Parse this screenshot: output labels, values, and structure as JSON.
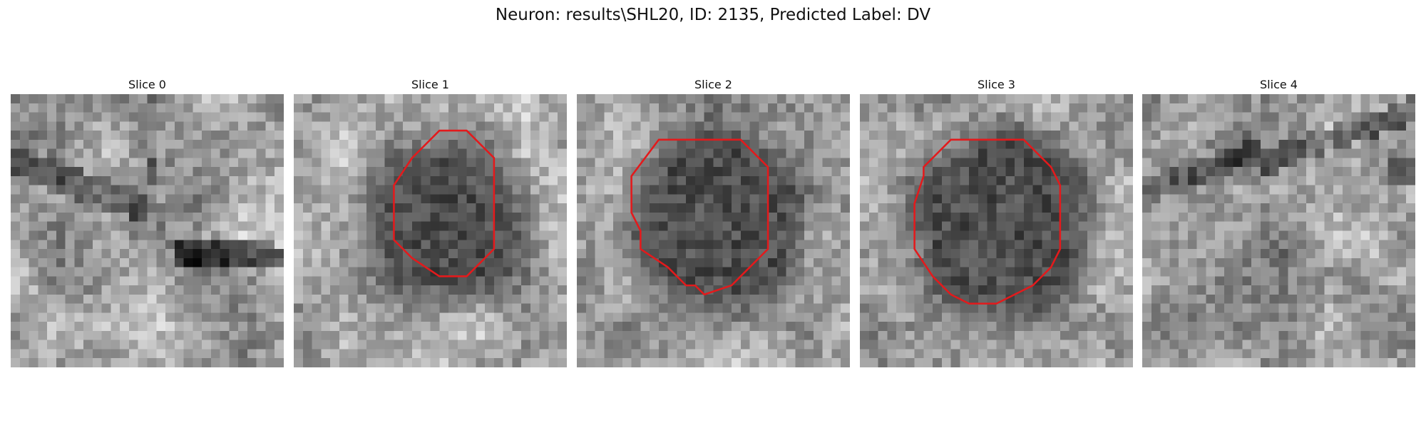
{
  "suptitle": "Neuron: results\\SHL20, ID: 2135, Predicted Label: DV",
  "panels": [
    {
      "title": "Slice 0",
      "has_contour": false,
      "texture": "streaks",
      "seed": 11,
      "contour": []
    },
    {
      "title": "Slice 1",
      "has_contour": true,
      "texture": "blob",
      "seed": 23,
      "contour": [
        [
          16,
          4
        ],
        [
          19,
          4
        ],
        [
          22,
          7
        ],
        [
          22,
          17
        ],
        [
          19,
          20
        ],
        [
          16,
          20
        ],
        [
          13,
          18
        ],
        [
          12,
          17
        ],
        [
          11,
          16
        ],
        [
          11,
          10
        ],
        [
          13,
          7
        ]
      ]
    },
    {
      "title": "Slice 2",
      "has_contour": true,
      "texture": "blob",
      "seed": 37,
      "contour": [
        [
          12,
          5
        ],
        [
          18,
          5
        ],
        [
          21,
          8
        ],
        [
          21,
          17
        ],
        [
          18,
          20
        ],
        [
          17,
          21
        ],
        [
          14,
          22
        ],
        [
          13,
          21
        ],
        [
          12,
          21
        ],
        [
          10,
          19
        ],
        [
          7,
          17
        ],
        [
          7,
          15
        ],
        [
          6,
          13
        ],
        [
          6,
          9
        ],
        [
          9,
          5
        ]
      ]
    },
    {
      "title": "Slice 3",
      "has_contour": true,
      "texture": "blob",
      "seed": 53,
      "contour": [
        [
          10,
          5
        ],
        [
          18,
          5
        ],
        [
          21,
          8
        ],
        [
          22,
          10
        ],
        [
          22,
          17
        ],
        [
          21,
          19
        ],
        [
          19,
          21
        ],
        [
          17,
          22
        ],
        [
          15,
          23
        ],
        [
          12,
          23
        ],
        [
          10,
          22
        ],
        [
          8,
          20
        ],
        [
          6,
          17
        ],
        [
          6,
          12
        ],
        [
          7,
          9
        ],
        [
          7,
          8
        ],
        [
          8,
          7
        ]
      ]
    },
    {
      "title": "Slice 4",
      "has_contour": false,
      "texture": "streaks2",
      "seed": 71,
      "contour": []
    }
  ],
  "colors": {
    "contour": "#e31a1c",
    "background": "#ffffff"
  },
  "grid_size": 30
}
